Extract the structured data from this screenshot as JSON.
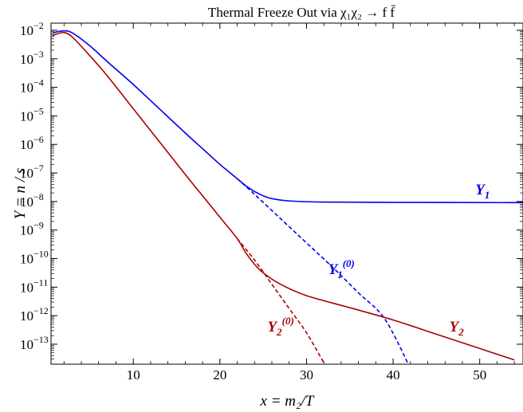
{
  "chart_data": {
    "type": "line",
    "title": "Thermal Freeze Out via χ₁χ₂ → f f̄",
    "xlabel": "x = m₂/T",
    "ylabel": "Y = n / s",
    "xlim": [
      0.5,
      55
    ],
    "ylim_exp": [
      -13.7,
      -1.75
    ],
    "y_scale": "log",
    "x_ticks": [
      10,
      20,
      30,
      40,
      50
    ],
    "y_tick_labels": [
      {
        "exp": -2,
        "text": "10",
        "sup": "−2"
      },
      {
        "exp": -3,
        "text": "10",
        "sup": "−3"
      },
      {
        "exp": -4,
        "text": "10",
        "sup": "−4"
      },
      {
        "exp": -5,
        "text": "10",
        "sup": "−5"
      },
      {
        "exp": -6,
        "text": "10",
        "sup": "−6"
      },
      {
        "exp": -7,
        "text": "10",
        "sup": "−7"
      },
      {
        "exp": -8,
        "text": "10",
        "sup": "−8"
      },
      {
        "exp": -9,
        "text": "10",
        "sup": "−9"
      },
      {
        "exp": -10,
        "text": "10",
        "sup": "−10"
      },
      {
        "exp": -11,
        "text": "10",
        "sup": "−11"
      },
      {
        "exp": -12,
        "text": "10",
        "sup": "−12"
      },
      {
        "exp": -13,
        "text": "10",
        "sup": "−13"
      }
    ],
    "series": [
      {
        "name": "Y1",
        "label": "Y",
        "sub": "1",
        "sup": "",
        "color": "#0000ee",
        "dashed": false,
        "points": [
          [
            0.7,
            -2.1
          ],
          [
            1,
            -2.07
          ],
          [
            2,
            -2.02
          ],
          [
            3,
            -2.1
          ],
          [
            5,
            -2.55
          ],
          [
            7,
            -3.1
          ],
          [
            10,
            -3.9
          ],
          [
            13,
            -4.75
          ],
          [
            16,
            -5.6
          ],
          [
            18,
            -6.15
          ],
          [
            20,
            -6.7
          ],
          [
            21,
            -6.95
          ],
          [
            22,
            -7.2
          ],
          [
            23,
            -7.45
          ],
          [
            24,
            -7.65
          ],
          [
            25,
            -7.8
          ],
          [
            26,
            -7.9
          ],
          [
            28,
            -7.98
          ],
          [
            32,
            -8.02
          ],
          [
            40,
            -8.03
          ],
          [
            55,
            -8.04
          ]
        ]
      },
      {
        "name": "Y1(0)",
        "label": "Y",
        "sub": "1",
        "sup": "(0)",
        "color": "#0000ee",
        "dashed": true,
        "points": [
          [
            22,
            -7.2
          ],
          [
            24,
            -7.75
          ],
          [
            27,
            -8.6
          ],
          [
            30,
            -9.45
          ],
          [
            33,
            -10.3
          ],
          [
            36,
            -11.2
          ],
          [
            39,
            -12.1
          ],
          [
            41.8,
            -13.72
          ]
        ]
      },
      {
        "name": "Y2",
        "label": "Y",
        "sub": "2",
        "sup": "",
        "color": "#aa0000",
        "dashed": false,
        "points": [
          [
            0.7,
            -2.2
          ],
          [
            1,
            -2.15
          ],
          [
            2,
            -2.08
          ],
          [
            3,
            -2.25
          ],
          [
            5,
            -2.9
          ],
          [
            7,
            -3.6
          ],
          [
            10,
            -4.75
          ],
          [
            13,
            -5.9
          ],
          [
            16,
            -7.05
          ],
          [
            18,
            -7.8
          ],
          [
            20,
            -8.55
          ],
          [
            22,
            -9.3
          ],
          [
            23,
            -9.8
          ],
          [
            24,
            -10.2
          ],
          [
            25,
            -10.5
          ],
          [
            27,
            -10.9
          ],
          [
            30,
            -11.3
          ],
          [
            35,
            -11.72
          ],
          [
            40,
            -12.15
          ],
          [
            45,
            -12.65
          ],
          [
            50,
            -13.15
          ],
          [
            54,
            -13.55
          ]
        ]
      },
      {
        "name": "Y2(0)",
        "label": "Y",
        "sub": "2",
        "sup": "(0)",
        "color": "#aa0000",
        "dashed": true,
        "points": [
          [
            22,
            -9.3
          ],
          [
            24,
            -10.05
          ],
          [
            26,
            -10.9
          ],
          [
            28,
            -11.75
          ],
          [
            30,
            -12.6
          ],
          [
            32,
            -13.65
          ]
        ]
      }
    ],
    "curve_labels": [
      {
        "series": "Y1",
        "x": 49.5,
        "exp": -7.75
      },
      {
        "series": "Y1(0)",
        "x": 32.5,
        "exp": -10.55
      },
      {
        "series": "Y2(0)",
        "x": 25.5,
        "exp": -12.55
      },
      {
        "series": "Y2",
        "x": 46.5,
        "exp": -12.55
      }
    ]
  }
}
